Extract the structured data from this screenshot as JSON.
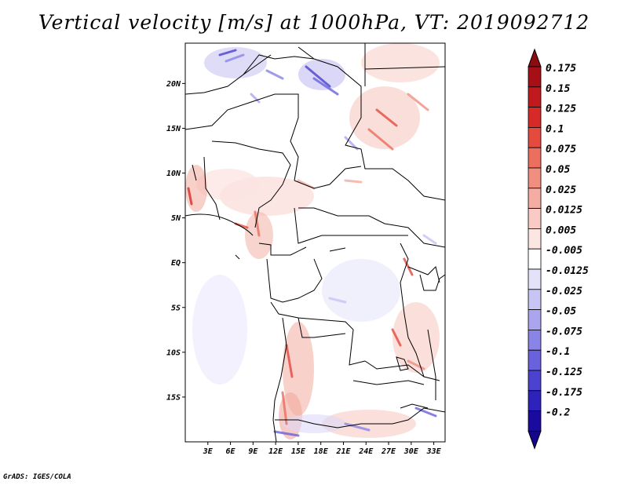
{
  "title": "Vertical velocity [m/s] at 1000hPa, VT: 2019092712",
  "credit": "GrADS: IGES/COLA",
  "map": {
    "lon_range": [
      0,
      34.5
    ],
    "lat_range": [
      -20,
      24.5
    ],
    "lat_ticks": [
      {
        "value": 20,
        "label": "20N"
      },
      {
        "value": 15,
        "label": "15N"
      },
      {
        "value": 10,
        "label": "10N"
      },
      {
        "value": 5,
        "label": "5N"
      },
      {
        "value": 0,
        "label": "EQ"
      },
      {
        "value": -5,
        "label": "5S"
      },
      {
        "value": -10,
        "label": "10S"
      },
      {
        "value": -15,
        "label": "15S"
      }
    ],
    "lon_ticks": [
      {
        "value": 3,
        "label": "3E"
      },
      {
        "value": 6,
        "label": "6E"
      },
      {
        "value": 9,
        "label": "9E"
      },
      {
        "value": 12,
        "label": "12E"
      },
      {
        "value": 15,
        "label": "15E"
      },
      {
        "value": 18,
        "label": "18E"
      },
      {
        "value": 21,
        "label": "21E"
      },
      {
        "value": 24,
        "label": "24E"
      },
      {
        "value": 27,
        "label": "27E"
      },
      {
        "value": 30,
        "label": "30E"
      },
      {
        "value": 33,
        "label": "33E"
      }
    ]
  },
  "colorbar": {
    "levels": [
      {
        "label": "0.175",
        "color": "#a50f15"
      },
      {
        "label": "0.15",
        "color": "#c0191e"
      },
      {
        "label": "0.125",
        "color": "#d72a28"
      },
      {
        "label": "0.1",
        "color": "#e54a3e"
      },
      {
        "label": "0.075",
        "color": "#ec6e5f"
      },
      {
        "label": "0.05",
        "color": "#f08e80"
      },
      {
        "label": "0.025",
        "color": "#f5aca2"
      },
      {
        "label": "0.0125",
        "color": "#f9cbc4"
      },
      {
        "label": "0.005",
        "color": "#fce6e2"
      },
      {
        "label": "-0.005",
        "color": "#ffffff"
      },
      {
        "label": "-0.0125",
        "color": "#e4e2f9"
      },
      {
        "label": "-0.025",
        "color": "#c8c4f4"
      },
      {
        "label": "-0.05",
        "color": "#aaa5ee"
      },
      {
        "label": "-0.075",
        "color": "#8a84e6"
      },
      {
        "label": "-0.1",
        "color": "#6a62dc"
      },
      {
        "label": "-0.125",
        "color": "#4b42cf"
      },
      {
        "label": "-0.175",
        "color": "#2e22bd"
      },
      {
        "label": "-0.2",
        "color": "#1a0a9e"
      }
    ],
    "top_color": "#8b0d10",
    "bottom_color": "#14058a"
  }
}
